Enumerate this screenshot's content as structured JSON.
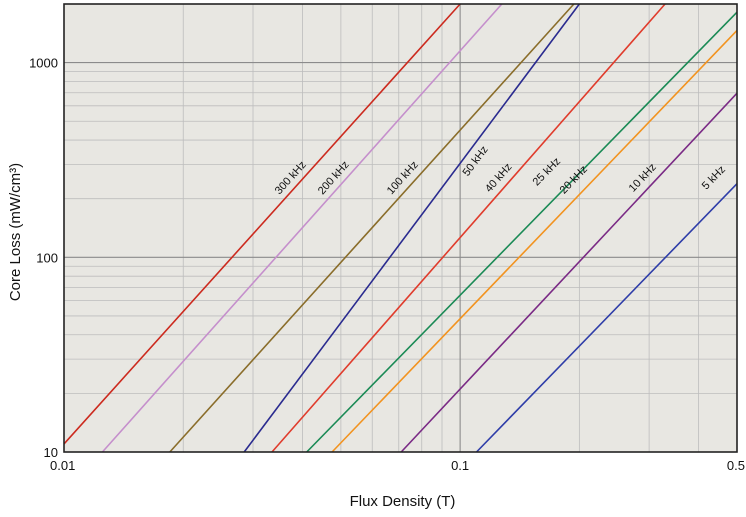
{
  "chart_data": {
    "type": "line",
    "title": "",
    "xlabel": "Flux Density (T)",
    "ylabel": "Core Loss (mW/cm³)",
    "x_scale": "log",
    "y_scale": "log",
    "xlim": [
      0.01,
      0.5
    ],
    "ylim": [
      10,
      2000
    ],
    "grid": true,
    "legend": "inline labels on lines",
    "x_ticks": [
      "0.01",
      "0.1",
      "0.5"
    ],
    "y_ticks": [
      "10",
      "100",
      "1000"
    ],
    "background_color": "#e8e7e2",
    "series": [
      {
        "name": "300 kHz",
        "color": "#cc2a1e",
        "x": [
          0.01,
          0.1
        ],
        "y": [
          11,
          2000
        ]
      },
      {
        "name": "200 kHz",
        "color": "#c58fcc",
        "x": [
          0.0125,
          0.1
        ],
        "y": [
          10,
          1150
        ]
      },
      {
        "name": "100 kHz",
        "color": "#8a6d2a",
        "x": [
          0.0185,
          0.1
        ],
        "y": [
          10,
          450
        ]
      },
      {
        "name": "50 kHz",
        "color": "#2a2b8f",
        "x": [
          0.0285,
          0.2
        ],
        "y": [
          10,
          2000
        ]
      },
      {
        "name": "40 kHz",
        "color": "#e03c2c",
        "x": [
          0.0335,
          0.2
        ],
        "y": [
          10,
          630
        ]
      },
      {
        "name": "25 kHz",
        "color": "#1a8a55",
        "x": [
          0.041,
          0.2
        ],
        "y": [
          10,
          270
        ]
      },
      {
        "name": "20 kHz",
        "color": "#f2931f",
        "x": [
          0.0475,
          0.2
        ],
        "y": [
          10,
          210
        ]
      },
      {
        "name": "10 kHz",
        "color": "#7a2a85",
        "x": [
          0.071,
          0.2
        ],
        "y": [
          10,
          95
        ]
      },
      {
        "name": "5 kHz",
        "color": "#2e3da8",
        "x": [
          0.11,
          0.2
        ],
        "y": [
          10,
          35
        ]
      }
    ]
  }
}
